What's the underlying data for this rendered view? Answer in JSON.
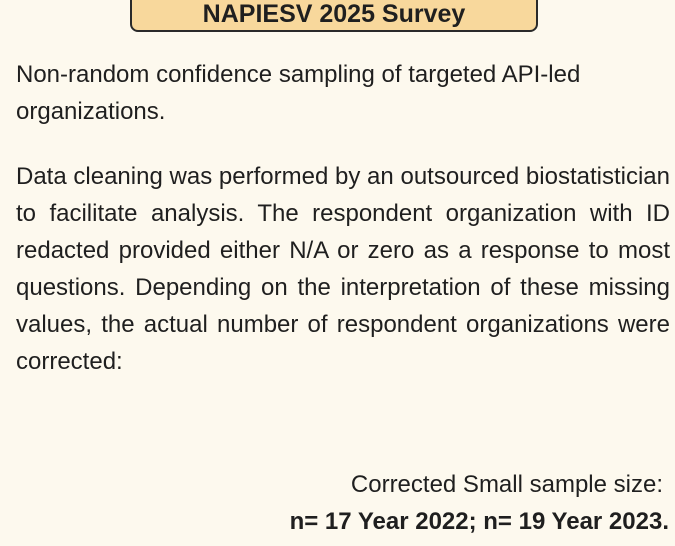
{
  "header": {
    "title": "NAPIESV 2025 Survey"
  },
  "paragraphs": [
    "Non-random confidence sampling of targeted API-led organizations.",
    "Data cleaning was performed by an outsourced biostatistician to facilitate analysis. The respondent organization with ID redacted provided either N/A or zero as a response to most questions. Depending on the interpretation of these missing values, the actual number of respondent organizations were corrected:"
  ],
  "footer": {
    "line1": "Corrected Small sample size:",
    "line2": "n= 17 Year 2022; n= 19 Year 2023."
  }
}
